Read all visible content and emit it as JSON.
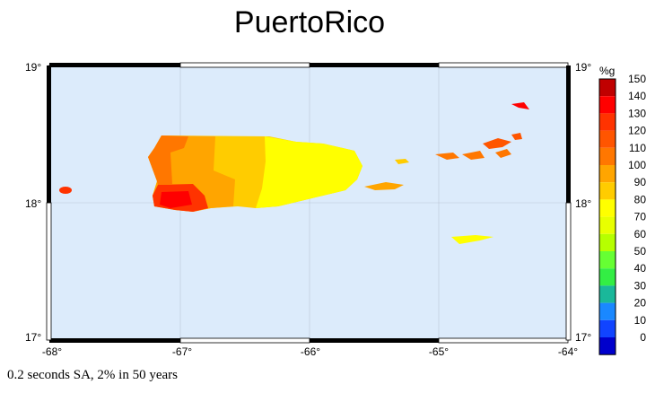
{
  "title": "PuertoRico",
  "caption": "0.2 seconds SA, 2% in 50 years",
  "map": {
    "lat_labels": [
      "19°",
      "18°",
      "17°"
    ],
    "lon_labels": [
      "-68°",
      "-67°",
      "-66°",
      "-65°",
      "-64°"
    ],
    "ocean_color": "#dcebfb",
    "regions": [
      {
        "name": "Puerto Rico",
        "value_bands": [
          90,
          100,
          110,
          120,
          130
        ]
      },
      {
        "name": "Vieques",
        "value_bands": [
          100
        ]
      },
      {
        "name": "St. Croix",
        "value_bands": [
          90
        ]
      },
      {
        "name": "Virgin Islands",
        "value_bands": [
          110,
          120
        ]
      },
      {
        "name": "Anegada",
        "value_bands": [
          130
        ]
      },
      {
        "name": "Mona",
        "value_bands": [
          130
        ]
      }
    ]
  },
  "legend": {
    "unit": "%g",
    "ticks": [
      "150",
      "140",
      "130",
      "120",
      "110",
      "100",
      "90",
      "80",
      "70",
      "60",
      "50",
      "40",
      "30",
      "20",
      "10",
      "0"
    ],
    "colors": [
      "#c00000",
      "#ff0000",
      "#ff3300",
      "#ff5500",
      "#ff7700",
      "#ffa500",
      "#ffcc00",
      "#ffff00",
      "#e8ff00",
      "#b6ff00",
      "#66ff33",
      "#33ee44",
      "#1ab89a",
      "#1a88ff",
      "#1144ff",
      "#0000cc"
    ]
  }
}
